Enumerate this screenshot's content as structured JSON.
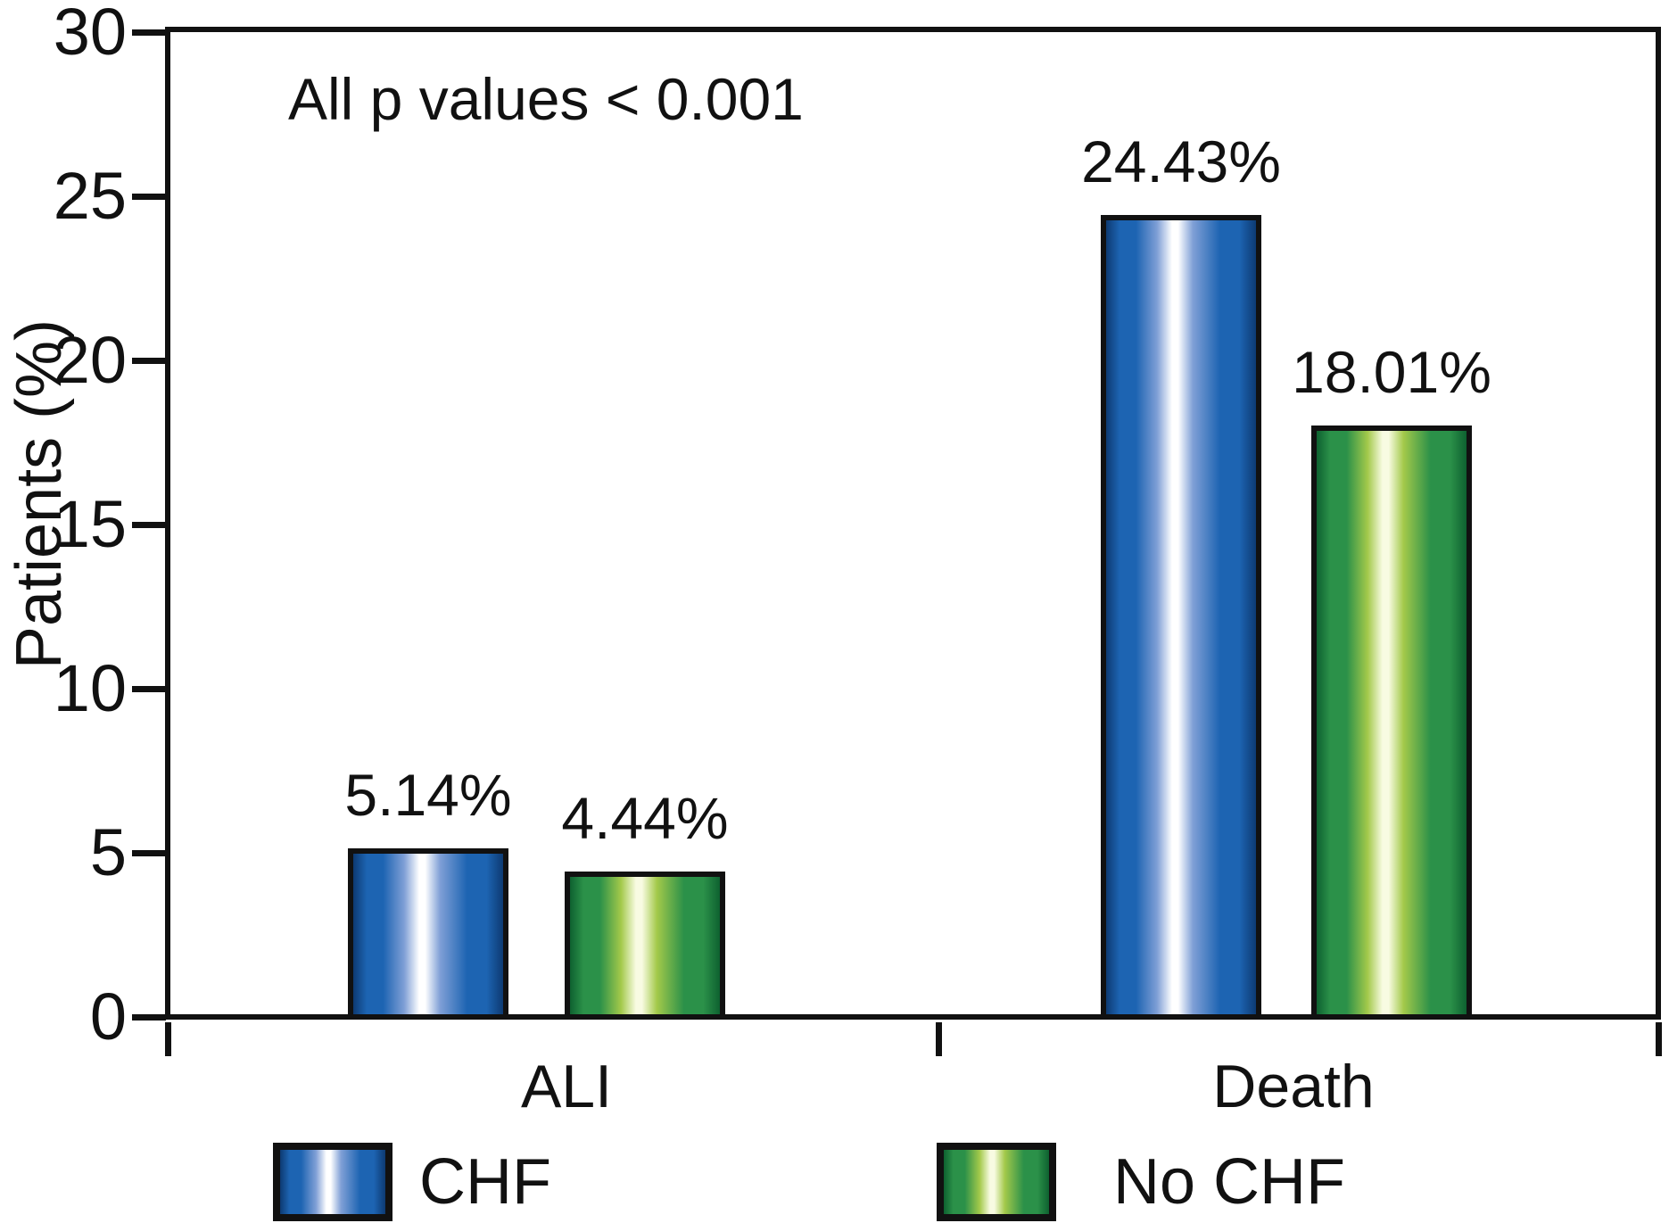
{
  "chart_data": {
    "type": "bar",
    "title": "",
    "ylabel": "Patients (%)",
    "annotation": "All p values < 0.001",
    "categories": [
      "ALI",
      "Death"
    ],
    "series": [
      {
        "name": "CHF",
        "values": [
          5.14,
          24.43
        ],
        "value_labels": [
          "5.14%",
          "24.43%"
        ],
        "colors": {
          "edge": "#0d3a72",
          "main": "#1d64b2",
          "light": "#7f9fd6",
          "highlight": "#ffffff"
        }
      },
      {
        "name": "No CHF",
        "values": [
          4.44,
          18.01
        ],
        "value_labels": [
          "4.44%",
          "18.01%"
        ],
        "colors": {
          "edge": "#0e6130",
          "main": "#2b9149",
          "light": "#a3c94a",
          "highlight": "#f8fbe2"
        }
      }
    ],
    "ylim": [
      0,
      30
    ],
    "yticks": [
      0,
      5,
      10,
      15,
      20,
      25,
      30
    ],
    "grid": false,
    "legend_position": "bottom",
    "axis_color": "#111111",
    "text_color": "#111111"
  }
}
